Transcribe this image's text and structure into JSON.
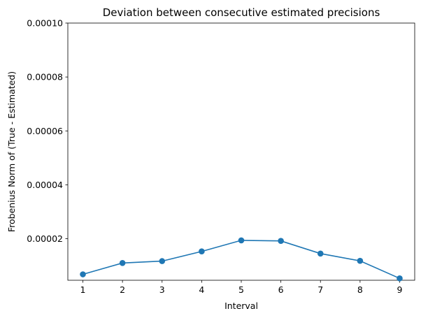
{
  "chart_data": {
    "type": "line",
    "title": "Deviation between consecutive estimated precisions",
    "xlabel": "Interval",
    "ylabel": "Frobenius Norm of (True - Estimated)",
    "x": [
      1,
      2,
      3,
      4,
      5,
      6,
      7,
      8,
      9
    ],
    "series": [
      {
        "values": [
          6.8e-06,
          1.1e-05,
          1.17e-05,
          1.53e-05,
          1.94e-05,
          1.92e-05,
          1.45e-05,
          1.18e-05,
          5.3e-06
        ],
        "color": "#1f77b4",
        "marker": "circle"
      }
    ],
    "x_ticks": [
      "1",
      "2",
      "3",
      "4",
      "5",
      "6",
      "7",
      "8",
      "9"
    ],
    "y_ticks": [
      2e-05,
      4e-05,
      6e-05,
      8e-05,
      0.0001
    ],
    "y_tick_labels": [
      "0.00002",
      "0.00004",
      "0.00006",
      "0.00008",
      "0.00010"
    ],
    "xlim": [
      0.62,
      9.38
    ],
    "ylim": [
      4.6e-06,
      0.0001
    ],
    "grid": false,
    "legend": "none"
  }
}
